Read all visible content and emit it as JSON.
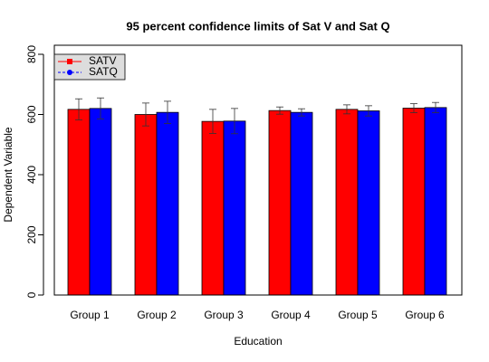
{
  "chart_data": {
    "type": "bar",
    "title": "95 percent confidence limits of Sat V and Sat Q",
    "x_label": "Education",
    "y_label": "Dependent Variable",
    "categories": [
      "Group 1",
      "Group 2",
      "Group 3",
      "Group 4",
      "Group 5",
      "Group 6"
    ],
    "series": [
      {
        "name": "SATV",
        "color": "#ff0000",
        "values": [
          617,
          600,
          577,
          613,
          617,
          621
        ],
        "errors": [
          35,
          38,
          40,
          12,
          15,
          15
        ],
        "legend_marker": "square",
        "legend_line": "solid"
      },
      {
        "name": "SATQ",
        "color": "#0000ff",
        "values": [
          620,
          607,
          578,
          607,
          612,
          623
        ],
        "errors": [
          35,
          37,
          42,
          12,
          17,
          17
        ],
        "legend_marker": "circle",
        "legend_line": "dashed"
      }
    ],
    "ylim": [
      0,
      800
    ],
    "yticks": [
      0,
      200,
      400,
      600,
      800
    ],
    "legend_position": "top-left",
    "legend_text_color": "#008000",
    "legend_background": "#dddddd"
  }
}
